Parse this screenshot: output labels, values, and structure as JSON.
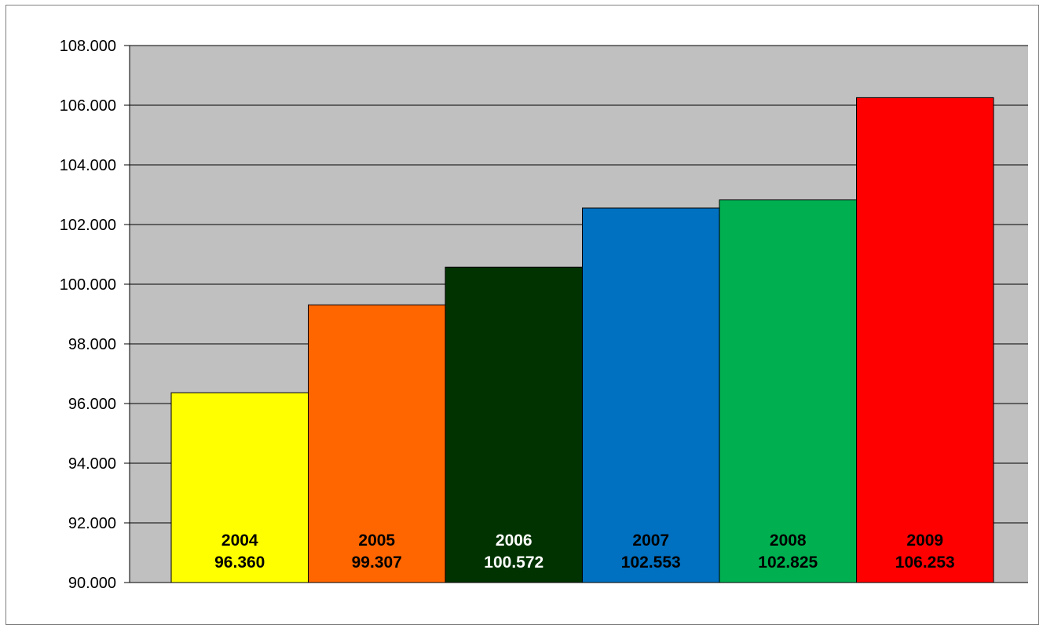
{
  "chart_data": {
    "type": "bar",
    "title": "",
    "xlabel": "",
    "ylabel": "",
    "categories": [
      "2004",
      "2005",
      "2006",
      "2007",
      "2008",
      "2009"
    ],
    "values": [
      96360,
      99307,
      100572,
      102553,
      102825,
      106253
    ],
    "value_labels": [
      "96.360",
      "99.307",
      "100.572",
      "102.553",
      "102.825",
      "106.253"
    ],
    "ylim": [
      90000,
      108000
    ],
    "yticks": [
      90000,
      92000,
      94000,
      96000,
      98000,
      100000,
      102000,
      104000,
      106000,
      108000
    ],
    "ytick_labels": [
      "90.000",
      "92.000",
      "94.000",
      "96.000",
      "98.000",
      "100.000",
      "102.000",
      "104.000",
      "106.000",
      "108.000"
    ],
    "bar_colors": [
      "#ffff00",
      "#ff6600",
      "#003300",
      "#0070c0",
      "#00b050",
      "#ff0000"
    ],
    "label_colors": [
      "#000000",
      "#000000",
      "#ffffff",
      "#000000",
      "#000000",
      "#000000"
    ],
    "plot_background": "#c0c0c0",
    "grid": true,
    "legend": "none"
  }
}
